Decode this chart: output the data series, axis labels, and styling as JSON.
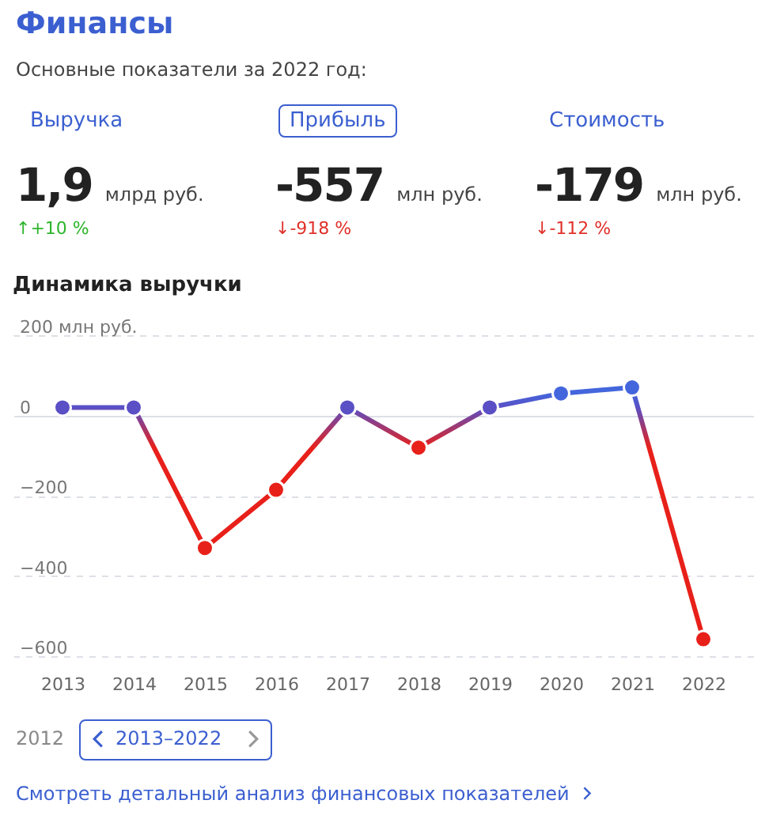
{
  "chart_data": [
    {
      "type": "other",
      "title": "Финансы",
      "subtitle": "Основные показатели за 2022 год:",
      "annotations": [
        "Выручка",
        "1,9",
        "млрд руб.",
        "↑+10 %",
        "Прибыль",
        "-557",
        "млн руб.",
        "↓-918 %",
        "Стоимость",
        "-179",
        "млн руб.",
        "↓-112 %"
      ]
    },
    {
      "type": "line",
      "title": "Динамика выручки",
      "categories": [
        "2013",
        "2014",
        "2015",
        "2016",
        "2017",
        "2018",
        "2019",
        "2020",
        "2021",
        "2022"
      ],
      "series": [
        {
          "values": [
            20,
            20,
            -330,
            -185,
            20,
            -80,
            20,
            55,
            70,
            -557
          ],
          "colors": [
            "#5a4fc4",
            "#5a4fc4",
            "#e8201a",
            "#e8201a",
            "#5a4fc4",
            "#e8201a",
            "#5a4fc4",
            "#4466dd",
            "#4466dd",
            "#e8201a"
          ]
        }
      ],
      "ylim": [
        -615,
        200
      ],
      "yticks": [
        -600,
        -400,
        -200,
        0,
        {
          "value": 200,
          "label": "200 млн руб."
        }
      ],
      "grid": "y",
      "marker": "circle",
      "line_style": "solid",
      "annotations": [
        "2012",
        "2013–2022",
        "Смотреть детальный анализ финансовых показателей"
      ]
    }
  ]
}
